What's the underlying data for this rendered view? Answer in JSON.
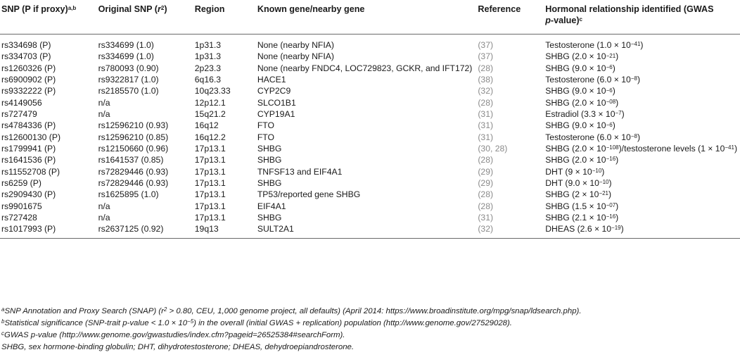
{
  "header": {
    "snp": "SNP (P if proxy)",
    "snp_sup": "a,b",
    "original_snp": "Original SNP (",
    "original_snp_r": "r",
    "original_snp_sup": "2",
    "original_snp_close": ")",
    "region": "Region",
    "gene": "Known gene/nearby gene",
    "reference": "Reference",
    "hormonal_line1": "Hormonal relationship identified (GWAS",
    "hormonal_line2_p": "p",
    "hormonal_line2": "-value)",
    "hormonal_sup": "c"
  },
  "rows": [
    {
      "snp": "rs334698 (P)",
      "orig": "rs334699 (1.0)",
      "region": "1p31.3",
      "gene": "None (nearby NFIA)",
      "ref": "(37)",
      "rel": "Testosterone (1.0 × 10",
      "exp": "−41",
      "tail": ")"
    },
    {
      "snp": "rs334703 (P)",
      "orig": "rs334699 (1.0)",
      "region": "1p31.3",
      "gene": "None (nearby NFIA)",
      "ref": "(37)",
      "rel": "SHBG (2.0 × 10",
      "exp": "−21",
      "tail": ")"
    },
    {
      "snp": "rs1260326 (P)",
      "orig": "rs780093 (0.90)",
      "region": "2p23.3",
      "gene": "None (nearby FNDC4, LOC729823, GCKR, and IFT172)",
      "ref": "(28)",
      "rel": "SHBG (9.0 × 10",
      "exp": "−6",
      "tail": ")"
    },
    {
      "snp": "rs6900902 (P)",
      "orig": "rs9322817 (1.0)",
      "region": "6q16.3",
      "gene": "HACE1",
      "ref": "(38)",
      "rel": "Testosterone (6.0 × 10",
      "exp": "−8",
      "tail": ")"
    },
    {
      "snp": "rs9332222 (P)",
      "orig": "rs2185570 (1.0)",
      "region": "10q23.33",
      "gene": "CYP2C9",
      "ref": "(32)",
      "rel": "SHBG (9.0 × 10",
      "exp": "−6",
      "tail": ")"
    },
    {
      "snp": "rs4149056",
      "orig": "n/a",
      "region": "12p12.1",
      "gene": "SLCO1B1",
      "ref": "(28)",
      "rel": "SHBG (2.0 × 10",
      "exp": "−08",
      "tail": ")"
    },
    {
      "snp": "rs727479",
      "orig": "n/a",
      "region": "15q21.2",
      "gene": "CYP19A1",
      "ref": "(31)",
      "rel": "Estradiol (3.3 × 10",
      "exp": "−7",
      "tail": ")"
    },
    {
      "snp": "rs4784336 (P)",
      "orig": "rs12596210 (0.93)",
      "region": "16q12",
      "gene": "FTO",
      "ref": "(31)",
      "rel": "SHBG (9.0 × 10",
      "exp": "−6",
      "tail": ")"
    },
    {
      "snp": "rs12600130 (P)",
      "orig": "rs12596210 (0.85)",
      "region": "16q12.2",
      "gene": "FTO",
      "ref": "(31)",
      "rel": "Testosterone (6.0 × 10",
      "exp": "−8",
      "tail": ")"
    },
    {
      "snp": "rs1799941 (P)",
      "orig": "rs12150660 (0.96)",
      "region": "17p13.1",
      "gene": "SHBG",
      "ref": "(30, 28)",
      "rel": "SHBG (2.0 × 10",
      "exp": "−108",
      "tail": ")/testosterone levels (1 × 10",
      "exp2": "−41",
      "tail2": ")"
    },
    {
      "snp": "rs1641536 (P)",
      "orig": "rs1641537 (0.85)",
      "region": "17p13.1",
      "gene": "SHBG",
      "ref": "(28)",
      "rel": "SHBG (2.0 × 10",
      "exp": "−16",
      "tail": ")"
    },
    {
      "snp": "rs11552708 (P)",
      "orig": "rs72829446 (0.93)",
      "region": "17p13.1",
      "gene": "TNFSF13 and EIF4A1",
      "ref": "(29)",
      "rel": "DHT (9 × 10",
      "exp": "−10",
      "tail": ")"
    },
    {
      "snp": "rs6259 (P)",
      "orig": "rs72829446 (0.93)",
      "region": "17p13.1",
      "gene": "SHBG",
      "ref": "(29)",
      "rel": "DHT (9.0 × 10",
      "exp": "−10",
      "tail": ")"
    },
    {
      "snp": "rs2909430 (P)",
      "orig": "rs1625895 (1.0)",
      "region": "17p13.1",
      "gene": "TP53/reported gene SHBG",
      "ref": "(28)",
      "rel": "SHBG (2 × 10",
      "exp": "−21",
      "tail": ")"
    },
    {
      "snp": "rs9901675",
      "orig": "n/a",
      "region": "17p13.1",
      "gene": "EIF4A1",
      "ref": "(28)",
      "rel": "SHBG (1.5 × 10",
      "exp": "−07",
      "tail": ")"
    },
    {
      "snp": "rs727428",
      "orig": "n/a",
      "region": "17p13.1",
      "gene": "SHBG",
      "ref": "(31)",
      "rel": "SHBG (2.1 × 10",
      "exp": "−16",
      "tail": ")"
    },
    {
      "snp": "rs1017993 (P)",
      "orig": "rs2637125 (0.92)",
      "region": "19q13",
      "gene": "SULT2A1",
      "ref": "(32)",
      "rel": "DHEAS (2.6 × 10",
      "exp": "−19",
      "tail": ")"
    }
  ],
  "notes": {
    "a_mark": "a",
    "a_pre": "SNP Annotation and Proxy Search (SNAP) (",
    "a_r": "r",
    "a_r_sup": "2",
    "a_post": " > 0.80, CEU, 1,000 genome project, all defaults) (April 2014: https://www.broadinstitute.org/mpg/snap/ldsearch.php).",
    "b_mark": "b",
    "b_pre": "Statistical significance (SNP-trait p-value < 1.0 × 10",
    "b_exp": "−5",
    "b_post": ") in the overall (initial GWAS + replication) population (http://www.genome.gov/27529028).",
    "c_mark": "c",
    "c_text": "GWAS p-value (http://www.genome.gov/gwastudies/index.cfm?pageid=26525384#searchForm).",
    "abbrev": "SHBG, sex hormone-binding globulin; DHT, dihydrotestosterone; DHEAS, dehydroepiandrosterone."
  }
}
